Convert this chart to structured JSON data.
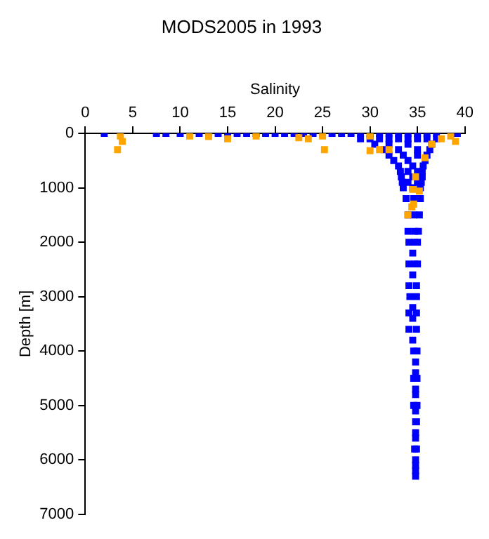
{
  "chart_data": {
    "type": "scatter",
    "title": "MODS2005 in 1993",
    "xlabel": "Salinity",
    "ylabel": "Depth [m]",
    "xlim": [
      0,
      40
    ],
    "xticks": [
      0,
      5,
      10,
      15,
      20,
      25,
      30,
      35,
      40
    ],
    "ylim": [
      7000,
      0
    ],
    "yticks": [
      0,
      1000,
      2000,
      3000,
      4000,
      5000,
      6000,
      7000
    ],
    "marker": "square",
    "series": [
      {
        "color": "#0000ff",
        "x": [
          2,
          7.5,
          8.5,
          10,
          12,
          13,
          14,
          15,
          16,
          17,
          18,
          19,
          20,
          21,
          22,
          23,
          24,
          25,
          26,
          27,
          28,
          29,
          30,
          31,
          32,
          33,
          34,
          35,
          36,
          37,
          39.2,
          29,
          31,
          33,
          35,
          37,
          30.5,
          32,
          34,
          36.5,
          31.5,
          33,
          35,
          36.3,
          32,
          33.5,
          35,
          36,
          32.5,
          34,
          35.8,
          33,
          34.5,
          35.6,
          33.3,
          34.5,
          35.5,
          33.5,
          34.5,
          35.3,
          33.8,
          34.6,
          35.3,
          34,
          34.6,
          35.2,
          34,
          34.7,
          35.1,
          34.1,
          34.7,
          35,
          34.1,
          34.7,
          35,
          34.1,
          34.9,
          34.2,
          34.9,
          34.1,
          34.9,
          34.1,
          34.9,
          34.6,
          34.95,
          34.6,
          34.95,
          34.6,
          34.95,
          34.8,
          34.9,
          34.7,
          34.9,
          34.8,
          34.8,
          30,
          32,
          34,
          36,
          33.2,
          34,
          35,
          35.5,
          33.4,
          34,
          35,
          35.4,
          34.5,
          34.5,
          34.5,
          34.5,
          34.5,
          34.8,
          34.8,
          34.8,
          34.8,
          34.8,
          34.8,
          34.8,
          34.8,
          34.8
        ],
        "values": [
          0,
          0,
          0,
          0,
          0,
          0,
          0,
          0,
          0,
          0,
          0,
          0,
          0,
          0,
          0,
          0,
          0,
          0,
          0,
          0,
          0,
          0,
          0,
          0,
          0,
          0,
          0,
          0,
          0,
          0,
          0,
          100,
          100,
          100,
          100,
          100,
          200,
          200,
          200,
          200,
          300,
          300,
          300,
          300,
          400,
          400,
          400,
          400,
          500,
          500,
          500,
          600,
          600,
          600,
          800,
          800,
          800,
          1000,
          1000,
          1000,
          1200,
          1200,
          1200,
          1500,
          1500,
          1500,
          1800,
          1800,
          1800,
          2000,
          2000,
          2000,
          2400,
          2400,
          2400,
          2800,
          2800,
          3000,
          3000,
          3300,
          3300,
          3600,
          3600,
          4000,
          4000,
          4500,
          4500,
          5000,
          5000,
          5300,
          5300,
          5800,
          5800,
          6200,
          6300,
          100,
          100,
          100,
          100,
          700,
          700,
          700,
          700,
          900,
          900,
          900,
          900,
          2200,
          2600,
          3200,
          3400,
          3800,
          4200,
          4400,
          4700,
          4800,
          5100,
          5500,
          5600,
          6000,
          6100
        ]
      },
      {
        "color": "#ffa500",
        "x": [
          3.7,
          3.9,
          3.4,
          11,
          13,
          15,
          18,
          22.5,
          23.5,
          25,
          25.2,
          30,
          31,
          30,
          32,
          37.5,
          38.5,
          39,
          36.5,
          35.8,
          34.8,
          34.5,
          35.2,
          34.4,
          34.6,
          34
        ],
        "values": [
          50,
          150,
          300,
          50,
          60,
          100,
          50,
          80,
          100,
          50,
          300,
          50,
          300,
          320,
          300,
          100,
          50,
          150,
          200,
          450,
          800,
          1030,
          1060,
          1350,
          1300,
          1500
        ]
      }
    ]
  }
}
